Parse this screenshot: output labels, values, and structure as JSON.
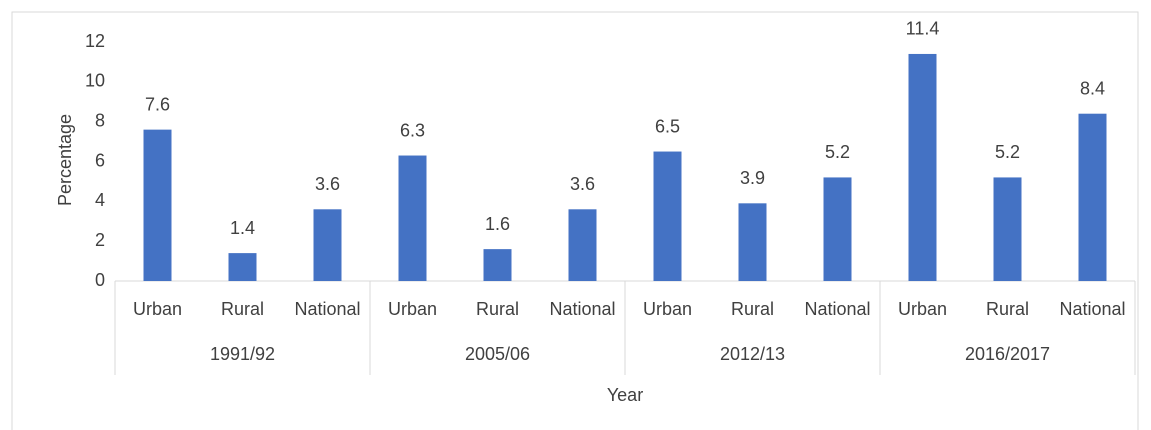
{
  "chart_data": {
    "type": "bar",
    "categories": [
      "Urban",
      "Rural",
      "National",
      "Urban",
      "Rural",
      "National",
      "Urban",
      "Rural",
      "National",
      "Urban",
      "Rural",
      "National"
    ],
    "groups": [
      "1991/92",
      "2005/06",
      "2012/13",
      "2016/2017"
    ],
    "values": [
      7.6,
      1.4,
      3.6,
      6.3,
      1.6,
      3.6,
      6.5,
      3.9,
      5.2,
      11.4,
      5.2,
      8.4
    ],
    "color": "#4472c4",
    "x_label": "Year",
    "y_label": "Percentage",
    "ylim": [
      0,
      12
    ],
    "yticks": [
      0,
      2,
      4,
      6,
      8,
      10,
      12
    ],
    "grid": false
  }
}
